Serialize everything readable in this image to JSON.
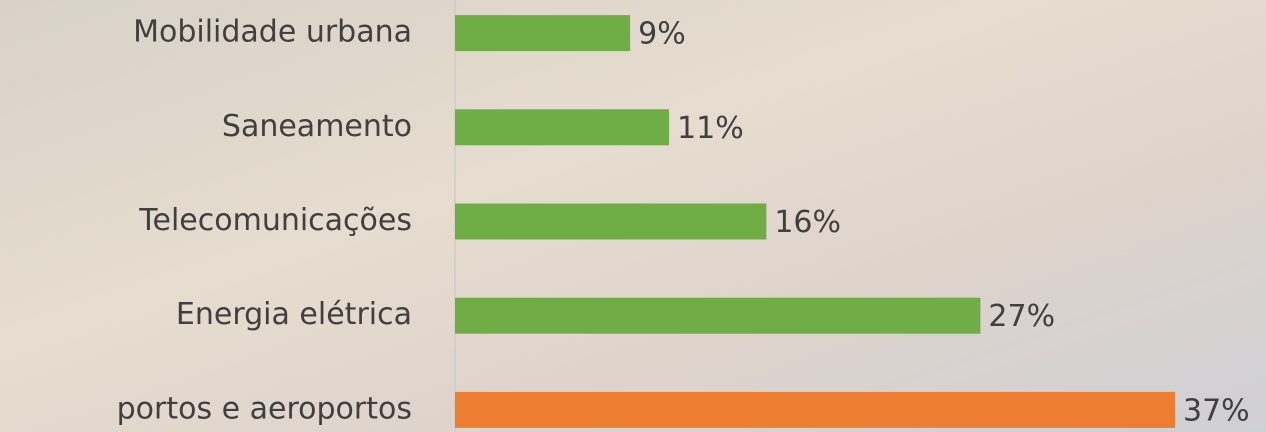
{
  "chart_data": {
    "type": "bar",
    "orientation": "horizontal",
    "categories": [
      "Mobilidade urbana",
      "Saneamento",
      "Telecomunicações",
      "Energia elétrica",
      "portos e aeroportos"
    ],
    "values": [
      9,
      11,
      16,
      27,
      37
    ],
    "value_labels": [
      "9%",
      "11%",
      "16%",
      "27%",
      "37%"
    ],
    "colors": [
      "#70ad47",
      "#70ad47",
      "#70ad47",
      "#70ad47",
      "#ed7d31"
    ]
  }
}
